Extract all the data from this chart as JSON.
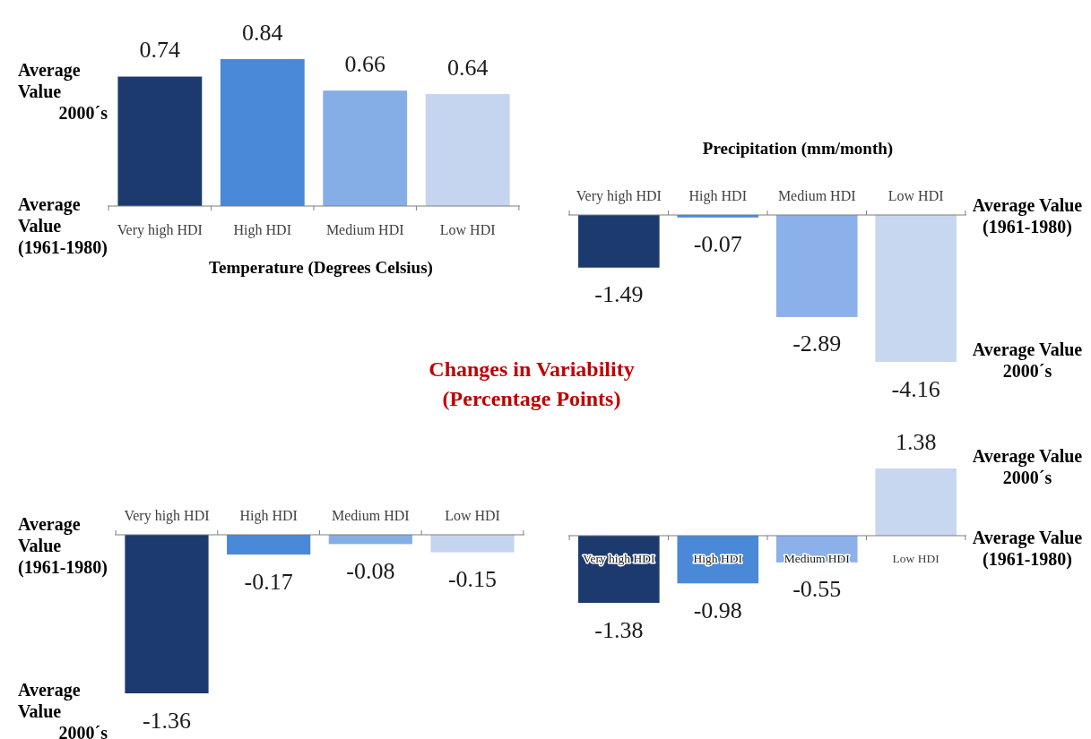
{
  "chart_data": [
    {
      "type": "bar",
      "title": "Temperature (Degrees Celsius)",
      "categories": [
        "Very high HDI",
        "High HDI",
        "Medium HDI",
        "Low HDI"
      ],
      "values": [
        0.74,
        0.84,
        0.66,
        0.64
      ],
      "colors": [
        "#1c3a6e",
        "#4a88d8",
        "#86aee6",
        "#c5d5ef"
      ],
      "data_labels": true,
      "annotations": [
        "Average Value 2000´s",
        "Average Value (1961-1980)"
      ]
    },
    {
      "type": "bar",
      "title": "Precipitation (mm/month)",
      "categories": [
        "Very high HDI",
        "High HDI",
        "Medium HDI",
        "Low HDI"
      ],
      "values": [
        -1.49,
        -0.07,
        -2.89,
        -4.16
      ],
      "colors": [
        "#1c3a6e",
        "#4a88d8",
        "#8cb0ea",
        "#c8d7f0"
      ],
      "data_labels": true,
      "annotations": [
        "Average Value (1961-1980)",
        "Average Value 2000´s"
      ]
    },
    {
      "type": "bar",
      "title": "Changes in Variability (Percentage Points)",
      "categories": [
        "Very high HDI",
        "High HDI",
        "Medium HDI",
        "Low HDI"
      ],
      "values": [
        -1.36,
        -0.17,
        -0.08,
        -0.15
      ],
      "colors": [
        "#1c3a6e",
        "#4a88d8",
        "#86aee6",
        "#c5d5ef"
      ],
      "data_labels": true,
      "annotations": [
        "Average Value (1961-1980)",
        "Average Value 2000´s"
      ]
    },
    {
      "type": "bar",
      "categories": [
        "Very high HDI",
        "High HDI",
        "Medium HDI",
        "Low HDI"
      ],
      "values": [
        -1.38,
        -0.98,
        -0.55,
        1.38
      ],
      "colors": [
        "#1c3a6e",
        "#4a88d8",
        "#8cb0ea",
        "#c8d7f0"
      ],
      "data_labels": true,
      "annotations": [
        "Average Value 2000´s",
        "Average Value (1961-1980)"
      ]
    }
  ]
}
